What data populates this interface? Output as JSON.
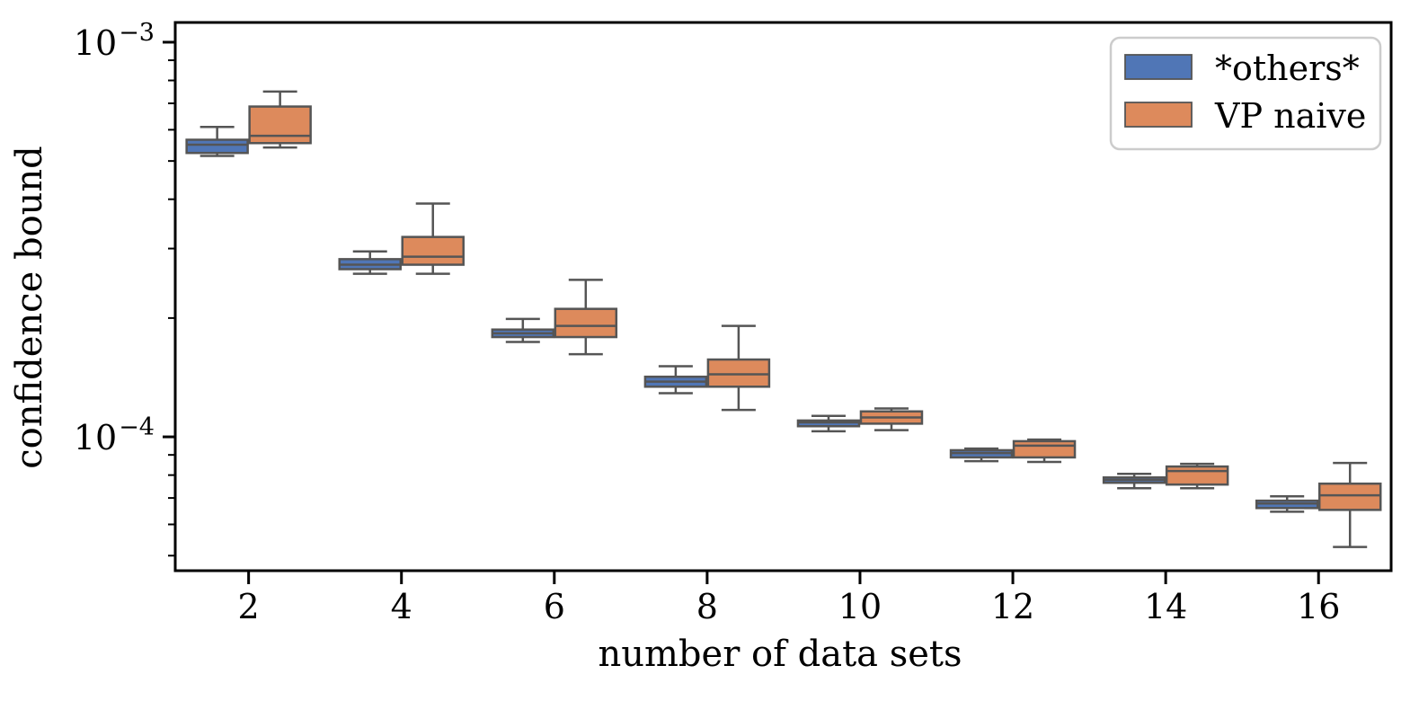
{
  "figure": {
    "background": "#ffffff"
  },
  "chart_data": {
    "type": "boxplot",
    "title": "",
    "xlabel": "number of data sets",
    "ylabel": "confidence bound",
    "y_scale": "log",
    "x_categories": [
      2,
      4,
      6,
      8,
      10,
      12,
      14,
      16
    ],
    "axes": {
      "xlim": [
        1.04,
        16.95
      ],
      "ylim": [
        4.58e-05,
        0.001122
      ],
      "y_major_ticks": [
        0.001,
        0.0001
      ],
      "y_major_tick_exponents": [
        -3,
        -4
      ],
      "y_tick_label_base": "10",
      "grid": false
    },
    "legend": {
      "position": "upper right"
    },
    "style": {
      "box_edge_color": "#555555",
      "spine_color": "#000000",
      "legend_border_color": "#cccccc"
    },
    "series": [
      {
        "name": "*others*",
        "color": "#5076b6",
        "boxes": [
          {
            "pos": 2,
            "whislo": 0.000515,
            "q1": 0.000524,
            "med": 0.00055,
            "q3": 0.000566,
            "whishi": 0.00061
          },
          {
            "pos": 4,
            "whislo": 0.000259,
            "q1": 0.000266,
            "med": 0.000273,
            "q3": 0.000282,
            "whishi": 0.000295
          },
          {
            "pos": 6,
            "whislo": 0.000174,
            "q1": 0.000179,
            "med": 0.000183,
            "q3": 0.000187,
            "whishi": 0.000199
          },
          {
            "pos": 8,
            "whislo": 0.000129,
            "q1": 0.000134,
            "med": 0.000138,
            "q3": 0.000142,
            "whishi": 0.000151
          },
          {
            "pos": 10,
            "whislo": 0.0001033,
            "q1": 0.0001064,
            "med": 0.0001088,
            "q3": 0.00011,
            "whishi": 0.000113
          },
          {
            "pos": 12,
            "whislo": 8.68e-05,
            "q1": 8.87e-05,
            "med": 9.1e-05,
            "q3": 9.25e-05,
            "whishi": 9.34e-05
          },
          {
            "pos": 14,
            "whislo": 7.41e-05,
            "q1": 7.65e-05,
            "med": 7.78e-05,
            "q3": 7.89e-05,
            "whishi": 8.06e-05
          },
          {
            "pos": 16,
            "whislo": 6.46e-05,
            "q1": 6.6e-05,
            "med": 6.78e-05,
            "q3": 6.89e-05,
            "whishi": 7.07e-05
          }
        ]
      },
      {
        "name": "VP naive",
        "color": "#dd8a5c",
        "boxes": [
          {
            "pos": 2,
            "whislo": 0.000541,
            "q1": 0.000555,
            "med": 0.000579,
            "q3": 0.000687,
            "whishi": 0.00075
          },
          {
            "pos": 4,
            "whislo": 0.000259,
            "q1": 0.000273,
            "med": 0.000286,
            "q3": 0.000321,
            "whishi": 0.00039
          },
          {
            "pos": 6,
            "whislo": 0.000162,
            "q1": 0.000179,
            "med": 0.000191,
            "q3": 0.000211,
            "whishi": 0.00025
          },
          {
            "pos": 8,
            "whislo": 0.000117,
            "q1": 0.000134,
            "med": 0.000144,
            "q3": 0.000157,
            "whishi": 0.000191
          },
          {
            "pos": 10,
            "whislo": 0.000104,
            "q1": 0.000108,
            "med": 0.000112,
            "q3": 0.000116,
            "whishi": 0.000118
          },
          {
            "pos": 12,
            "whislo": 8.64e-05,
            "q1": 8.87e-05,
            "med": 9.5e-05,
            "q3": 9.75e-05,
            "whishi": 9.84e-05
          },
          {
            "pos": 14,
            "whislo": 7.41e-05,
            "q1": 7.57e-05,
            "med": 8.19e-05,
            "q3": 8.41e-05,
            "whishi": 8.54e-05
          },
          {
            "pos": 16,
            "whislo": 5.26e-05,
            "q1": 6.53e-05,
            "med": 7.11e-05,
            "q3": 7.61e-05,
            "whishi": 8.59e-05
          }
        ]
      }
    ]
  }
}
